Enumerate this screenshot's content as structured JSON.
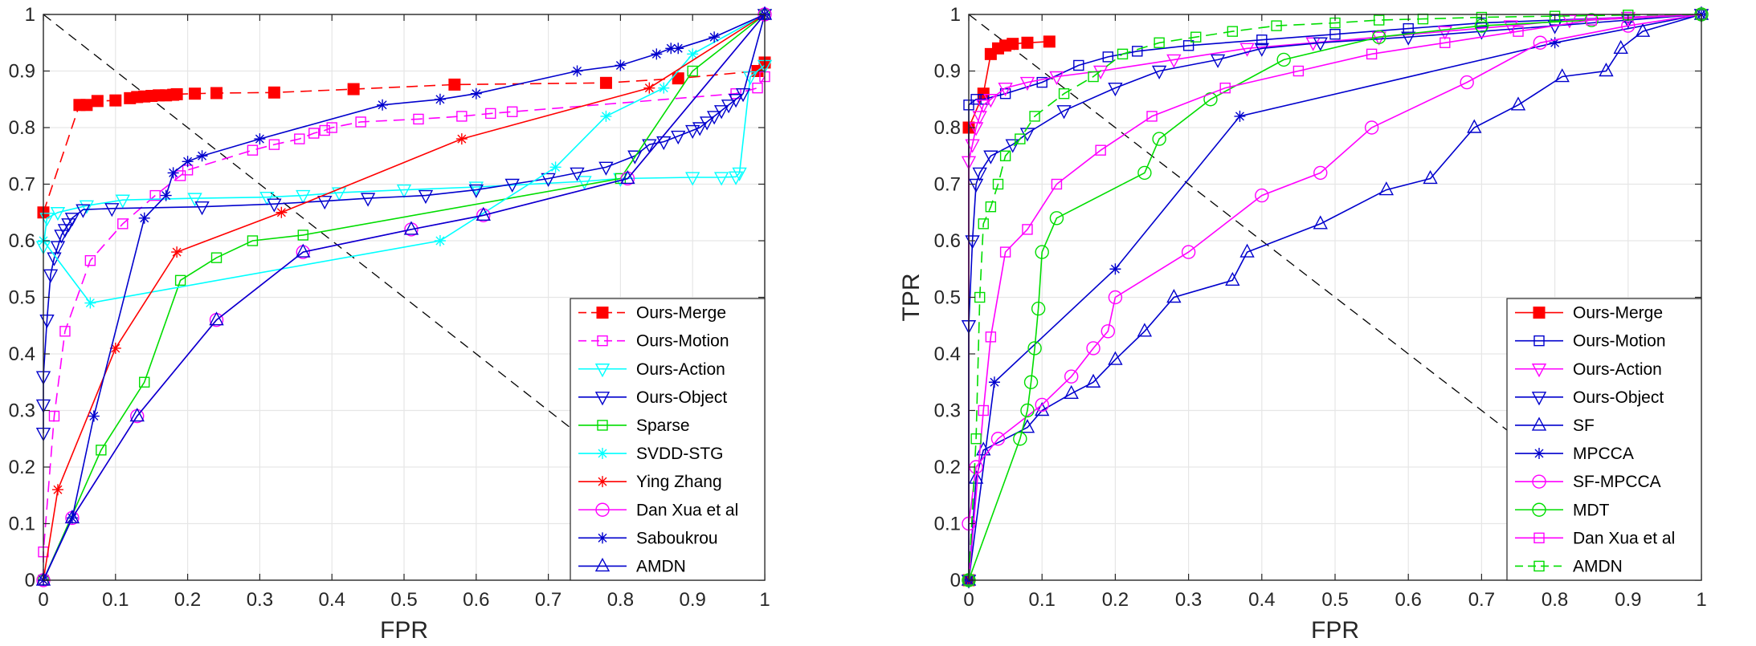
{
  "chart_data": [
    {
      "type": "line",
      "title": "",
      "xlabel": "FPR",
      "ylabel": "",
      "xlim": [
        0,
        1
      ],
      "ylim": [
        0,
        1
      ],
      "xticks": [
        "0",
        "0.1",
        "0.2",
        "0.3",
        "0.4",
        "0.5",
        "0.6",
        "0.7",
        "0.8",
        "0.9",
        "1"
      ],
      "yticks": [
        "0",
        "0.1",
        "0.2",
        "0.3",
        "0.4",
        "0.5",
        "0.6",
        "0.7",
        "0.8",
        "0.9",
        "1"
      ],
      "grid": true,
      "legend_position": "bottom-right",
      "diagonal": {
        "x": [
          0,
          1
        ],
        "y": [
          1,
          0
        ],
        "color": "#000000",
        "dash": true
      },
      "series": [
        {
          "name": "Ours-Merge",
          "color": "#ff0000",
          "marker": "square-filled",
          "dashed": true,
          "x": [
            0,
            0.05,
            0.06,
            0.075,
            0.1,
            0.12,
            0.13,
            0.14,
            0.15,
            0.16,
            0.17,
            0.18,
            0.185,
            0.21,
            0.24,
            0.32,
            0.43,
            0.57,
            0.78,
            0.88,
            0.99,
            1
          ],
          "y": [
            0.65,
            0.84,
            0.84,
            0.847,
            0.848,
            0.852,
            0.854,
            0.855,
            0.856,
            0.857,
            0.857,
            0.858,
            0.859,
            0.86,
            0.861,
            0.862,
            0.868,
            0.876,
            0.879,
            0.887,
            0.9,
            0.915
          ]
        },
        {
          "name": "Ours-Motion",
          "color": "#ff00ff",
          "marker": "square-open",
          "dashed": true,
          "x": [
            0,
            0,
            0.015,
            0.03,
            0.065,
            0.11,
            0.155,
            0.19,
            0.2,
            0.29,
            0.32,
            0.355,
            0.375,
            0.39,
            0.4,
            0.44,
            0.52,
            0.58,
            0.62,
            0.65,
            0.96,
            0.99,
            1
          ],
          "y": [
            0,
            0.05,
            0.29,
            0.44,
            0.565,
            0.63,
            0.68,
            0.715,
            0.725,
            0.76,
            0.77,
            0.78,
            0.79,
            0.795,
            0.8,
            0.81,
            0.815,
            0.82,
            0.825,
            0.828,
            0.86,
            0.87,
            0.89
          ]
        },
        {
          "name": "Ours-Action",
          "color": "#00ffff",
          "marker": "triangle-down-open",
          "dashed": false,
          "x": [
            0,
            0.005,
            0.02,
            0.06,
            0.11,
            0.21,
            0.31,
            0.36,
            0.41,
            0.5,
            0.6,
            0.75,
            0.8,
            0.9,
            0.94,
            0.96,
            0.965,
            0.98,
            1
          ],
          "y": [
            0.59,
            0.64,
            0.65,
            0.662,
            0.672,
            0.675,
            0.677,
            0.68,
            0.685,
            0.69,
            0.695,
            0.705,
            0.71,
            0.712,
            0.712,
            0.713,
            0.72,
            0.89,
            0.91
          ]
        },
        {
          "name": "Ours-Object",
          "color": "#0000cd",
          "marker": "triangle-down-open",
          "dashed": false,
          "x": [
            0,
            0,
            0,
            0.005,
            0.01,
            0.015,
            0.02,
            0.025,
            0.03,
            0.035,
            0.04,
            0.055,
            0.095,
            0.22,
            0.32,
            0.39,
            0.45,
            0.53,
            0.6,
            0.65,
            0.7,
            0.74,
            0.78,
            0.82,
            0.84,
            0.86,
            0.88,
            0.9,
            0.91,
            0.92,
            0.93,
            0.94,
            0.95,
            0.96,
            0.97,
            1
          ],
          "y": [
            0.26,
            0.31,
            0.36,
            0.46,
            0.54,
            0.57,
            0.59,
            0.61,
            0.62,
            0.63,
            0.64,
            0.655,
            0.657,
            0.66,
            0.665,
            0.67,
            0.675,
            0.68,
            0.69,
            0.7,
            0.71,
            0.72,
            0.73,
            0.75,
            0.77,
            0.775,
            0.785,
            0.795,
            0.8,
            0.81,
            0.82,
            0.83,
            0.84,
            0.85,
            0.86,
            1
          ]
        },
        {
          "name": "Sparse",
          "color": "#00dd00",
          "marker": "square-open",
          "dashed": false,
          "x": [
            0,
            0.08,
            0.14,
            0.19,
            0.24,
            0.29,
            0.36,
            0.8,
            0.9,
            1
          ],
          "y": [
            0,
            0.23,
            0.35,
            0.53,
            0.57,
            0.6,
            0.61,
            0.71,
            0.9,
            1
          ]
        },
        {
          "name": "SVDD-STG",
          "color": "#00ffff",
          "marker": "asterisk",
          "dashed": false,
          "x": [
            0,
            0.065,
            0.55,
            0.71,
            0.78,
            0.86,
            0.9,
            1
          ],
          "y": [
            0.6,
            0.49,
            0.6,
            0.73,
            0.82,
            0.87,
            0.93,
            1
          ]
        },
        {
          "name": "Ying Zhang",
          "color": "#ff0000",
          "marker": "asterisk",
          "dashed": false,
          "x": [
            0,
            0.02,
            0.1,
            0.185,
            0.33,
            0.58,
            0.84,
            1
          ],
          "y": [
            0,
            0.16,
            0.41,
            0.58,
            0.65,
            0.78,
            0.87,
            1
          ]
        },
        {
          "name": "Dan Xua et al",
          "color": "#ff00ff",
          "marker": "circle-open",
          "dashed": false,
          "x": [
            0,
            0.04,
            0.13,
            0.24,
            0.36,
            0.51,
            0.61,
            0.81,
            1
          ],
          "y": [
            0,
            0.11,
            0.29,
            0.46,
            0.58,
            0.62,
            0.645,
            0.71,
            1
          ]
        },
        {
          "name": "Saboukrou",
          "color": "#0000cd",
          "marker": "asterisk",
          "dashed": false,
          "x": [
            0,
            0.04,
            0.07,
            0.14,
            0.17,
            0.18,
            0.2,
            0.22,
            0.3,
            0.47,
            0.55,
            0.6,
            0.74,
            0.8,
            0.85,
            0.87,
            0.88,
            0.93,
            1
          ],
          "y": [
            0,
            0.11,
            0.29,
            0.64,
            0.68,
            0.72,
            0.74,
            0.75,
            0.78,
            0.84,
            0.85,
            0.86,
            0.9,
            0.91,
            0.93,
            0.94,
            0.94,
            0.96,
            1
          ]
        },
        {
          "name": "AMDN",
          "color": "#0000cd",
          "marker": "triangle-up-open",
          "dashed": false,
          "x": [
            0,
            0.04,
            0.13,
            0.24,
            0.36,
            0.51,
            0.61,
            0.81,
            1
          ],
          "y": [
            0,
            0.11,
            0.29,
            0.46,
            0.58,
            0.62,
            0.645,
            0.71,
            1
          ]
        }
      ]
    },
    {
      "type": "line",
      "title": "",
      "xlabel": "FPR",
      "ylabel": "TPR",
      "xlim": [
        0,
        1
      ],
      "ylim": [
        0,
        1
      ],
      "xticks": [
        "0",
        "0.1",
        "0.2",
        "0.3",
        "0.4",
        "0.5",
        "0.6",
        "0.7",
        "0.8",
        "0.9",
        "1"
      ],
      "yticks": [
        "0",
        "0.1",
        "0.2",
        "0.3",
        "0.4",
        "0.5",
        "0.6",
        "0.7",
        "0.8",
        "0.9",
        "1"
      ],
      "grid": true,
      "legend_position": "bottom-right",
      "diagonal": {
        "x": [
          0,
          1
        ],
        "y": [
          1,
          0
        ],
        "color": "#000000",
        "dash": true
      },
      "series": [
        {
          "name": "Ours-Merge",
          "color": "#ff0000",
          "marker": "square-filled",
          "dashed": false,
          "x": [
            0,
            0,
            0.02,
            0.03,
            0.04,
            0.05,
            0.06,
            0.08,
            0.11
          ],
          "y": [
            0,
            0.8,
            0.86,
            0.93,
            0.94,
            0.945,
            0.948,
            0.95,
            0.952
          ]
        },
        {
          "name": "Ours-Motion",
          "color": "#0000cd",
          "marker": "square-open",
          "dashed": false,
          "x": [
            0,
            0,
            0.01,
            0.02,
            0.05,
            0.1,
            0.15,
            0.19,
            0.23,
            0.3,
            0.4,
            0.5,
            0.6,
            0.7,
            0.8,
            0.9,
            1
          ],
          "y": [
            0,
            0.84,
            0.85,
            0.85,
            0.86,
            0.88,
            0.91,
            0.925,
            0.935,
            0.945,
            0.955,
            0.965,
            0.975,
            0.985,
            0.99,
            0.995,
            1
          ]
        },
        {
          "name": "Ours-Action",
          "color": "#ff00ff",
          "marker": "triangle-down-open",
          "dashed": false,
          "x": [
            0,
            0,
            0.005,
            0.01,
            0.015,
            0.02,
            0.03,
            0.05,
            0.08,
            0.12,
            0.18,
            0.28,
            0.38,
            0.47,
            0.56,
            0.65,
            0.74,
            0.82,
            0.9,
            1
          ],
          "y": [
            0,
            0.74,
            0.77,
            0.8,
            0.82,
            0.84,
            0.85,
            0.87,
            0.88,
            0.89,
            0.9,
            0.92,
            0.94,
            0.95,
            0.96,
            0.97,
            0.98,
            0.99,
            0.995,
            1
          ]
        },
        {
          "name": "Ours-Object",
          "color": "#0000cd",
          "marker": "triangle-down-open",
          "dashed": false,
          "x": [
            0,
            0,
            0.005,
            0.01,
            0.015,
            0.03,
            0.06,
            0.08,
            0.13,
            0.2,
            0.26,
            0.34,
            0.4,
            0.48,
            0.6,
            0.7,
            0.8,
            0.9,
            1
          ],
          "y": [
            0,
            0.45,
            0.6,
            0.7,
            0.72,
            0.75,
            0.77,
            0.79,
            0.83,
            0.87,
            0.9,
            0.92,
            0.94,
            0.95,
            0.96,
            0.97,
            0.98,
            0.99,
            1
          ]
        },
        {
          "name": "SF",
          "color": "#0000cd",
          "marker": "triangle-up-open",
          "dashed": false,
          "x": [
            0,
            0.01,
            0.02,
            0.08,
            0.1,
            0.14,
            0.17,
            0.2,
            0.24,
            0.28,
            0.36,
            0.38,
            0.48,
            0.57,
            0.63,
            0.69,
            0.75,
            0.81,
            0.87,
            0.89,
            0.92,
            1
          ],
          "y": [
            0,
            0.18,
            0.23,
            0.27,
            0.3,
            0.33,
            0.35,
            0.39,
            0.44,
            0.5,
            0.53,
            0.58,
            0.63,
            0.69,
            0.71,
            0.8,
            0.84,
            0.89,
            0.9,
            0.94,
            0.97,
            1
          ]
        },
        {
          "name": "MPCCA",
          "color": "#0000cd",
          "marker": "asterisk",
          "dashed": false,
          "x": [
            0,
            0.035,
            0.2,
            0.37,
            0.8,
            1
          ],
          "y": [
            0,
            0.35,
            0.55,
            0.82,
            0.95,
            1
          ]
        },
        {
          "name": "SF-MPCCA",
          "color": "#ff00ff",
          "marker": "circle-open",
          "dashed": false,
          "x": [
            0,
            0.01,
            0.04,
            0.1,
            0.14,
            0.17,
            0.19,
            0.2,
            0.3,
            0.4,
            0.48,
            0.55,
            0.68,
            0.78,
            0.9,
            1
          ],
          "y": [
            0.1,
            0.2,
            0.25,
            0.31,
            0.36,
            0.41,
            0.44,
            0.5,
            0.58,
            0.68,
            0.72,
            0.8,
            0.88,
            0.95,
            0.98,
            1
          ]
        },
        {
          "name": "MDT",
          "color": "#00dd00",
          "marker": "circle-open",
          "dashed": false,
          "x": [
            0,
            0.07,
            0.08,
            0.085,
            0.09,
            0.095,
            0.1,
            0.12,
            0.24,
            0.26,
            0.33,
            0.43,
            0.56,
            0.7,
            0.85,
            1
          ],
          "y": [
            0,
            0.25,
            0.3,
            0.35,
            0.41,
            0.48,
            0.58,
            0.64,
            0.72,
            0.78,
            0.85,
            0.92,
            0.96,
            0.98,
            0.99,
            1
          ]
        },
        {
          "name": "Dan Xua et al",
          "color": "#ff00ff",
          "marker": "square-open",
          "dashed": false,
          "x": [
            0,
            0.02,
            0.03,
            0.05,
            0.08,
            0.12,
            0.18,
            0.25,
            0.35,
            0.45,
            0.55,
            0.65,
            0.75,
            0.85,
            1
          ],
          "y": [
            0,
            0.3,
            0.43,
            0.58,
            0.62,
            0.7,
            0.76,
            0.82,
            0.87,
            0.9,
            0.93,
            0.95,
            0.97,
            0.99,
            1
          ]
        },
        {
          "name": "AMDN",
          "color": "#00dd00",
          "marker": "square-open",
          "dashed": true,
          "x": [
            0,
            0.01,
            0.015,
            0.02,
            0.03,
            0.04,
            0.05,
            0.07,
            0.09,
            0.13,
            0.17,
            0.21,
            0.26,
            0.31,
            0.36,
            0.42,
            0.5,
            0.56,
            0.62,
            0.7,
            0.8,
            0.9,
            1
          ],
          "y": [
            0,
            0.25,
            0.5,
            0.63,
            0.66,
            0.7,
            0.75,
            0.78,
            0.82,
            0.86,
            0.89,
            0.93,
            0.95,
            0.96,
            0.97,
            0.98,
            0.985,
            0.99,
            0.992,
            0.995,
            0.997,
            0.999,
            1
          ]
        }
      ]
    }
  ]
}
